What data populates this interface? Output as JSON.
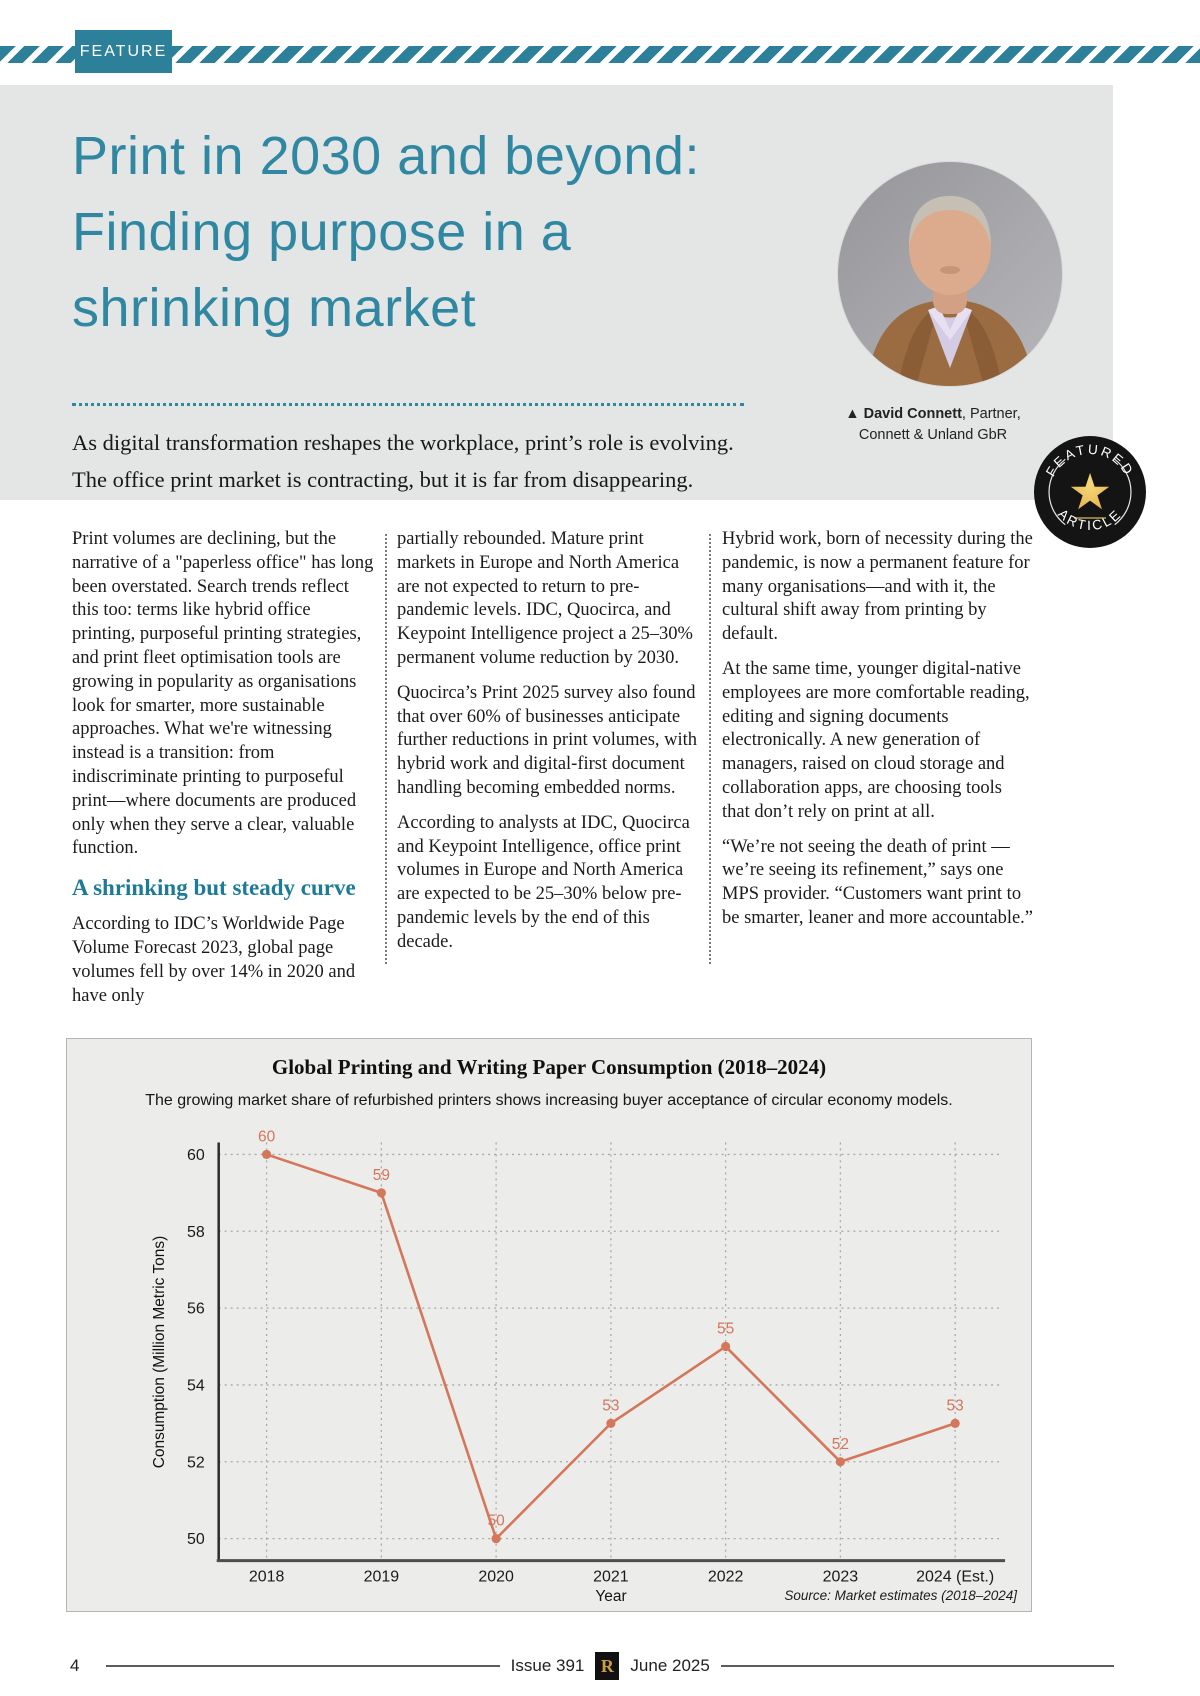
{
  "header": {
    "feature_tag": "FEATURE",
    "title_line1": "Print in 2030 and beyond:",
    "title_line2": "Finding purpose in a",
    "title_line3": "shrinking market",
    "intro_line1": "As digital transformation reshapes the workplace, print’s role is evolving.",
    "intro_line2": "The office print market is contracting, but it is far from disappearing."
  },
  "author": {
    "marker": "▲",
    "name": "David Connett",
    "role_suffix": ", Partner,",
    "org": "Connett & Unland GbR"
  },
  "badge": {
    "top": "FEATURED",
    "bottom": "ARTICLE",
    "star_icon": "★"
  },
  "article": {
    "col1": {
      "para1": "Print volumes are declining, but the narrative of a \"paperless office\" has long been overstated. Search trends reflect this too: terms like hybrid office printing, purposeful printing strategies, and print fleet optimisation tools are growing in popularity as organisations look for smarter, more sustainable approaches. What we're witnessing instead is a transition: from indiscriminate printing to purposeful print—where documents are produced only when they serve a clear, valuable function.",
      "heading": "A shrinking but steady curve",
      "para2": "According to IDC’s Worldwide Page Volume Forecast 2023, global page volumes fell by over 14% in 2020 and have only"
    },
    "col2": {
      "para1": "partially rebounded. Mature print markets in Europe and North America are not expected to return to pre-pandemic levels. IDC, Quocirca, and Keypoint Intelligence project a 25–30% permanent volume reduction by 2030.",
      "para2": "Quocirca’s Print 2025 survey also found that over 60% of businesses anticipate further reductions in print volumes, with hybrid work and digital-first document handling becoming embedded norms.",
      "para3": "According to analysts at IDC, Quocirca and Keypoint Intelligence, office print volumes in Europe and North America are expected to be 25–30% below pre-pandemic levels by the end of this decade."
    },
    "col3": {
      "para1": "Hybrid work, born of necessity during the pandemic, is now a permanent feature for many organisations—and with it, the cultural shift away from printing by default.",
      "para2": "At the same time, younger digital-native employees are more comfortable reading, editing and signing documents electronically. A new generation of managers, raised on cloud storage and collaboration apps, are choosing tools that don’t rely on print at all.",
      "para3": "“We’re not seeing the death of print —we’re seeing its refinement,” says one MPS provider. “Customers want print to be smarter, leaner and more accountable.”"
    }
  },
  "chart_data": {
    "type": "line",
    "title": "Global Printing and Writing Paper Consumption (2018–2024)",
    "subtitle": "The growing market share of refurbished printers shows increasing buyer acceptance of circular economy models.",
    "categories": [
      "2018",
      "2019",
      "2020",
      "2021",
      "2022",
      "2023",
      "2024 (Est.)"
    ],
    "values": [
      60,
      59,
      50,
      53,
      55,
      52,
      53
    ],
    "xlabel": "Year",
    "ylabel": "Consumption (Million Metric Tons)",
    "yticks": [
      50,
      52,
      54,
      56,
      58,
      60
    ],
    "ylim": [
      49.5,
      60.8
    ],
    "grid": true,
    "legend": "none",
    "line_color": "#d4765a",
    "source": "Source: Market estimates (2018–2024]"
  },
  "footer": {
    "page_number": "4",
    "issue": "Issue 391",
    "logo_letter": "R",
    "date": "June 2025"
  },
  "colors": {
    "accent_teal": "#2c8099",
    "title_teal": "#2f87a2",
    "heading_teal": "#1d7b99",
    "line_salmon": "#d4765a",
    "badge_black": "#141414",
    "badge_gold": "#e3a83d"
  }
}
